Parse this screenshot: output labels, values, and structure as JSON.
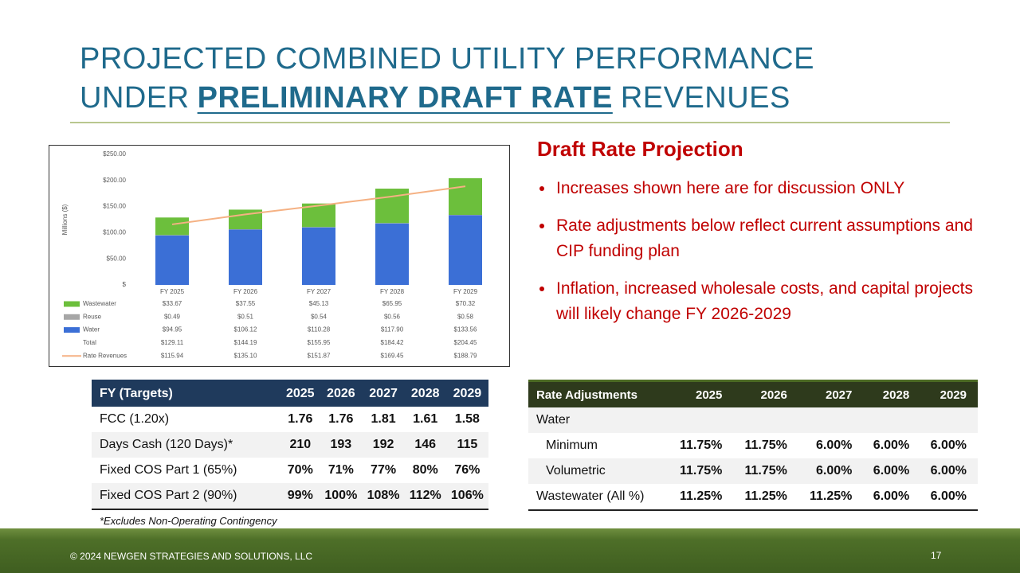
{
  "title": {
    "line1": "PROJECTED COMBINED UTILITY PERFORMANCE",
    "line2_start": "UNDER",
    "line2_emphasis": "PRELIMINARY DRAFT RATE",
    "line2_end": "REVENUES"
  },
  "chart_data": {
    "type": "bar",
    "stacked": true,
    "y_label": "Millions ($)",
    "categories": [
      "FY 2025",
      "FY 2026",
      "FY 2027",
      "FY 2028",
      "FY 2029"
    ],
    "ylim": [
      0,
      250
    ],
    "yticks": [
      {
        "value": 0,
        "label": "$"
      },
      {
        "value": 50,
        "label": "$50.00"
      },
      {
        "value": 100,
        "label": "$100.00"
      },
      {
        "value": 150,
        "label": "$150.00"
      },
      {
        "value": 200,
        "label": "$200.00"
      },
      {
        "value": 250,
        "label": "$250.00"
      }
    ],
    "series": [
      {
        "name": "Wastewater",
        "type": "bar",
        "color": "#6cbf3c",
        "values": [
          33.67,
          37.55,
          45.13,
          65.95,
          70.32
        ],
        "value_labels": [
          "$33.67",
          "$37.55",
          "$45.13",
          "$65.95",
          "$70.32"
        ]
      },
      {
        "name": "Reuse",
        "type": "bar",
        "color": "#a6a6a6",
        "values": [
          0.49,
          0.51,
          0.54,
          0.56,
          0.58
        ],
        "value_labels": [
          "$0.49",
          "$0.51",
          "$0.54",
          "$0.56",
          "$0.58"
        ]
      },
      {
        "name": "Water",
        "type": "bar",
        "color": "#3b6fd6",
        "values": [
          94.95,
          106.12,
          110.28,
          117.9,
          133.56
        ],
        "value_labels": [
          "$94.95",
          "$106.12",
          "$110.28",
          "$117.90",
          "$133.56"
        ]
      },
      {
        "name": "Total",
        "values": [
          129.11,
          144.19,
          155.95,
          184.42,
          204.45
        ],
        "value_labels": [
          "$129.11",
          "$144.19",
          "$155.95",
          "$184.42",
          "$204.45"
        ]
      },
      {
        "name": "Rate Revenues",
        "type": "line",
        "color": "#f5b183",
        "values": [
          115.94,
          135.1,
          151.87,
          169.45,
          188.79
        ],
        "value_labels": [
          "$115.94",
          "$135.10",
          "$151.87",
          "$169.45",
          "$188.79"
        ]
      }
    ]
  },
  "projection": {
    "heading": "Draft Rate Projection",
    "bullets": [
      "Increases shown here are for discussion ONLY",
      "Rate adjustments below reflect current assumptions and CIP funding plan",
      "Inflation, increased wholesale costs, and capital projects will likely change FY 2026-2029"
    ]
  },
  "targets_table": {
    "header": [
      "FY (Targets)",
      "2025",
      "2026",
      "2027",
      "2028",
      "2029"
    ],
    "rows": [
      [
        "FCC (1.20x)",
        "1.76",
        "1.76",
        "1.81",
        "1.61",
        "1.58"
      ],
      [
        "Days Cash (120 Days)*",
        "210",
        "193",
        "192",
        "146",
        "115"
      ],
      [
        "Fixed COS Part 1 (65%)",
        "70%",
        "71%",
        "77%",
        "80%",
        "76%"
      ],
      [
        "Fixed COS Part 2 (90%)",
        "99%",
        "100%",
        "108%",
        "112%",
        "106%"
      ]
    ],
    "footnote": "*Excludes Non-Operating Contingency"
  },
  "rate_table": {
    "header": [
      "Rate Adjustments",
      "2025",
      "2026",
      "2027",
      "2028",
      "2029"
    ],
    "rows": [
      [
        "Water"
      ],
      [
        "Minimum",
        "11.75%",
        "11.75%",
        "6.00%",
        "6.00%",
        "6.00%"
      ],
      [
        "Volumetric",
        "11.75%",
        "11.75%",
        "6.00%",
        "6.00%",
        "6.00%"
      ],
      [
        "Wastewater (All %)",
        "11.25%",
        "11.25%",
        "11.25%",
        "6.00%",
        "6.00%"
      ]
    ]
  },
  "footer": {
    "copyright": "© 2024 NEWGEN STRATEGIES AND SOLUTIONS, LLC",
    "page": "17"
  }
}
